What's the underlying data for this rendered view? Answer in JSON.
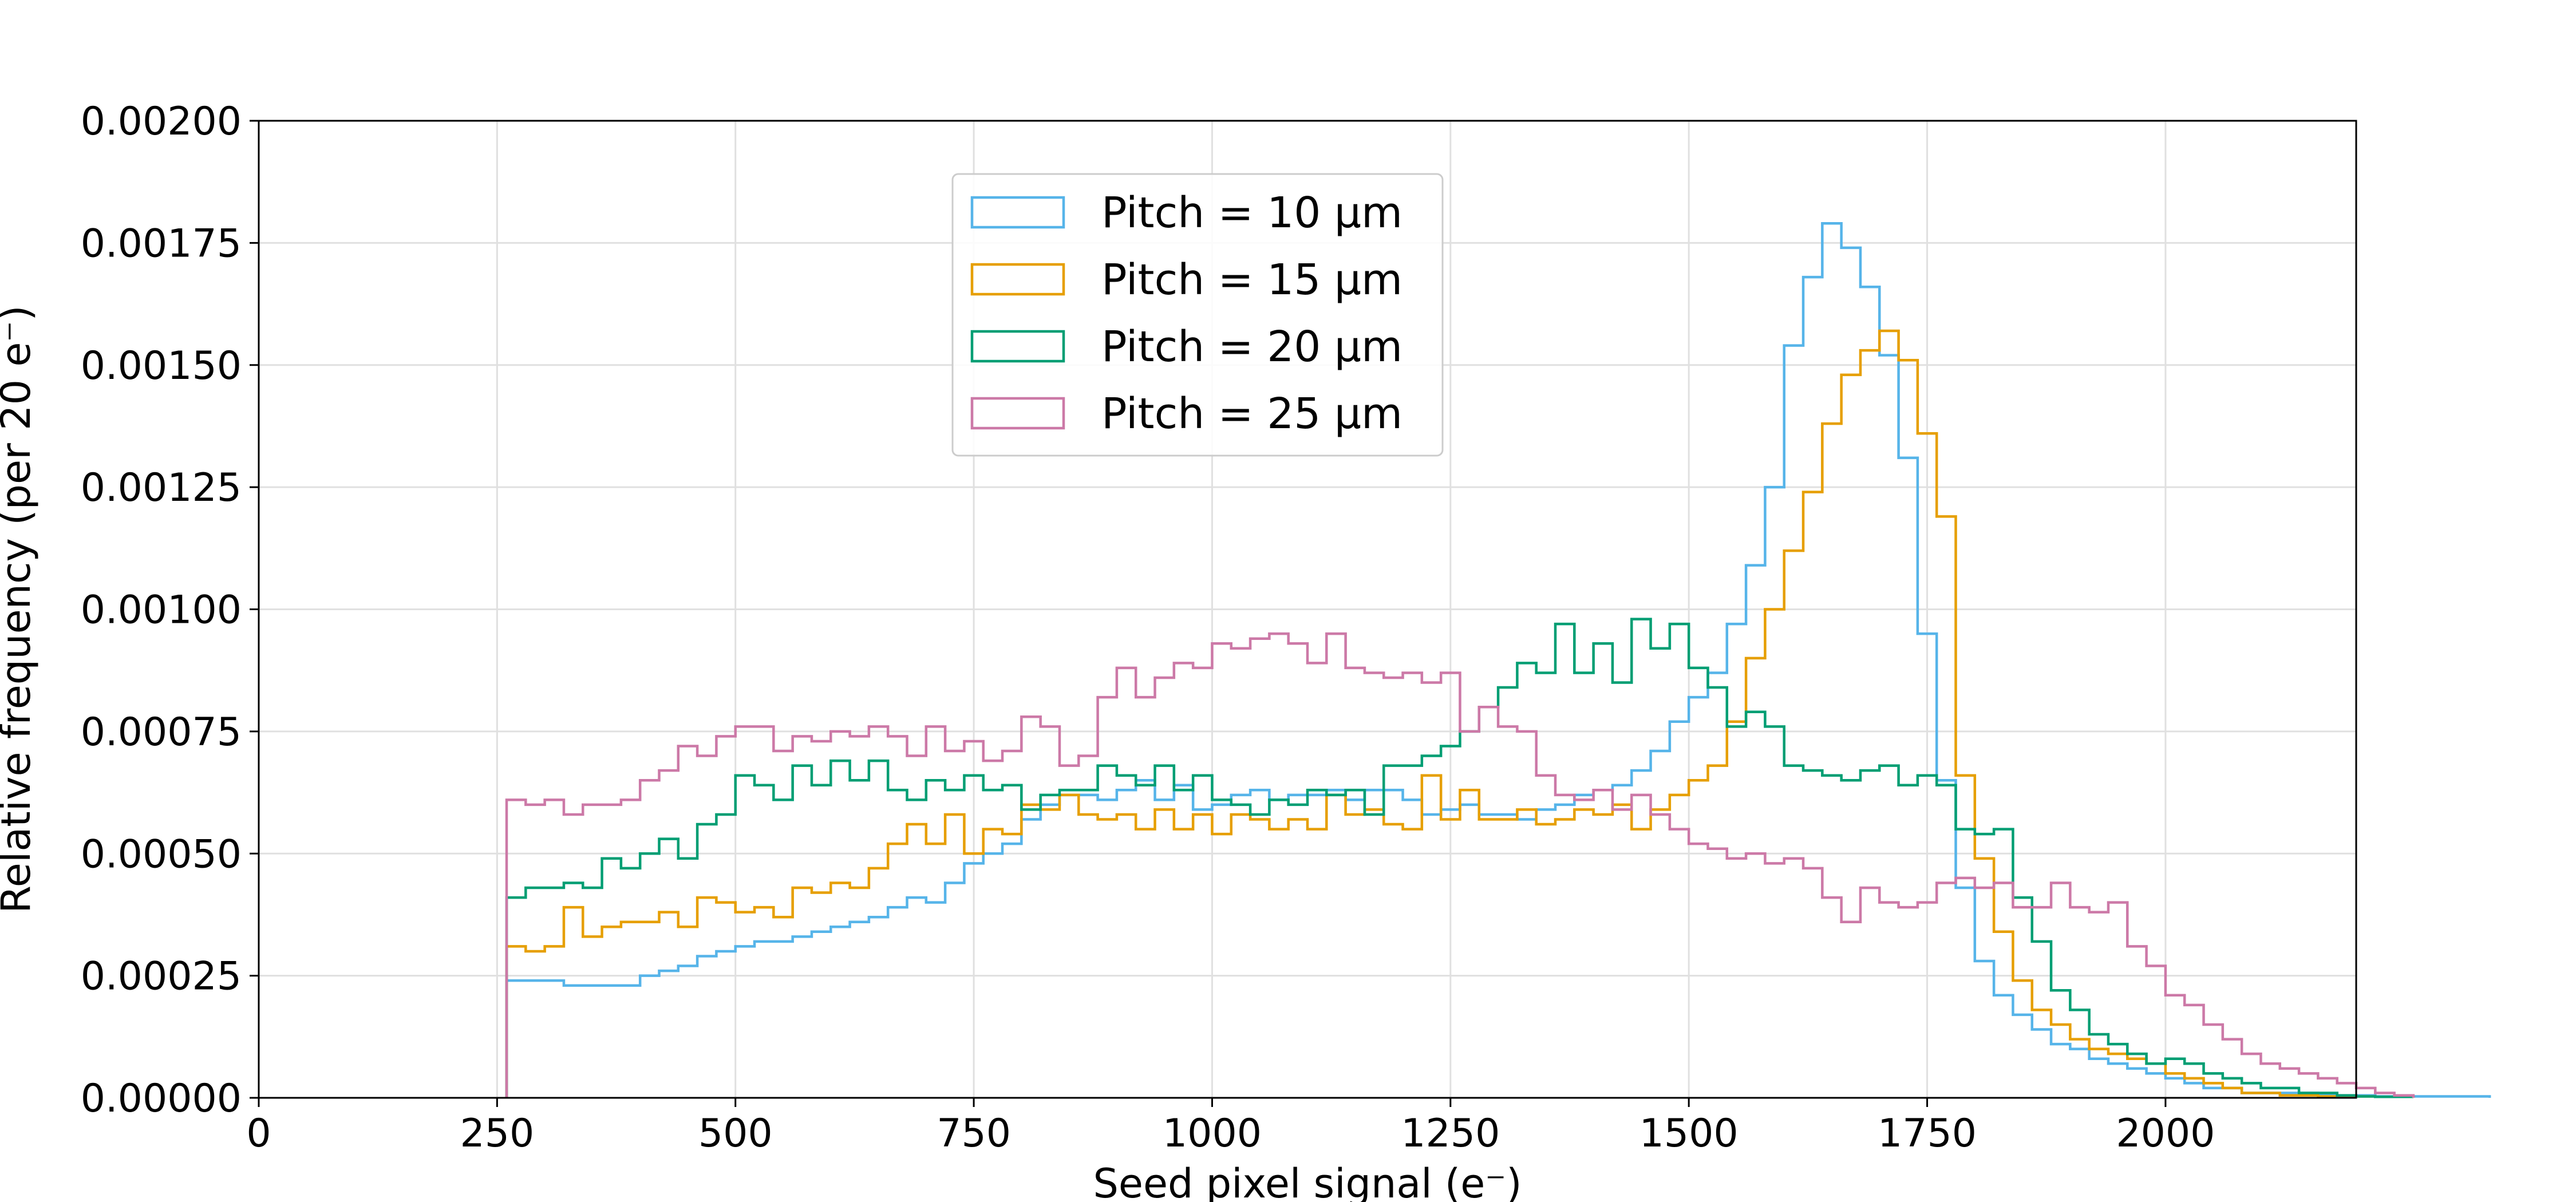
{
  "chart_data": {
    "type": "histogram-step",
    "xlabel": "Seed pixel signal (e⁻)",
    "ylabel": "Relative frequency (per 20 e⁻)",
    "xlim": [
      0,
      2200
    ],
    "ylim": [
      0,
      0.002
    ],
    "xticks": [
      0,
      250,
      500,
      750,
      1000,
      1250,
      1500,
      1750,
      2000
    ],
    "xtick_labels": [
      "0",
      "250",
      "500",
      "750",
      "1000",
      "1250",
      "1500",
      "1750",
      "2000"
    ],
    "yticks": [
      0,
      0.00025,
      0.0005,
      0.00075,
      0.001,
      0.00125,
      0.0015,
      0.00175,
      0.002
    ],
    "ytick_labels": [
      "0.00000",
      "0.00025",
      "0.00050",
      "0.00075",
      "0.00100",
      "0.00125",
      "0.00150",
      "0.00175",
      "0.00200"
    ],
    "grid": true,
    "legend_position": "upper-center",
    "bin_edges": {
      "start": 260,
      "width": 20
    },
    "series": [
      {
        "name": "Pitch = 10 µm",
        "color": "#56b4e9",
        "values": [
          0.00024,
          0.00024,
          0.00024,
          0.00023,
          0.00023,
          0.00023,
          0.00023,
          0.00025,
          0.00026,
          0.00027,
          0.00029,
          0.0003,
          0.00031,
          0.00032,
          0.00032,
          0.00033,
          0.00034,
          0.00035,
          0.00036,
          0.00037,
          0.00039,
          0.00041,
          0.0004,
          0.00044,
          0.00048,
          0.0005,
          0.00052,
          0.00057,
          0.0006,
          0.00062,
          0.00062,
          0.00061,
          0.00063,
          0.00065,
          0.00061,
          0.00064,
          0.00059,
          0.0006,
          0.00062,
          0.00063,
          0.00061,
          0.00062,
          0.00062,
          0.00063,
          0.00061,
          0.00063,
          0.00063,
          0.00061,
          0.00058,
          0.00059,
          0.0006,
          0.00058,
          0.00058,
          0.00057,
          0.00059,
          0.0006,
          0.00062,
          0.00063,
          0.00064,
          0.00067,
          0.00071,
          0.00077,
          0.00082,
          0.00087,
          0.00097,
          0.00109,
          0.00125,
          0.00154,
          0.00168,
          0.00179,
          0.00174,
          0.00166,
          0.00152,
          0.00131,
          0.00095,
          0.00065,
          0.00043,
          0.00028,
          0.00021,
          0.00017,
          0.00014,
          0.00011,
          0.0001,
          8e-05,
          7e-05,
          6e-05,
          5e-05,
          4e-05,
          3e-05,
          2e-05,
          2e-05,
          1e-05,
          1e-05,
          1e-05,
          1e-05,
          5e-06,
          5e-06,
          5e-06,
          3e-06,
          3e-06
        ],
        "tail": [
          3e-06,
          3e-06,
          3e-06,
          3e-06
        ]
      },
      {
        "name": "Pitch = 15 µm",
        "color": "#e69f00",
        "values": [
          0.00031,
          0.0003,
          0.00031,
          0.00039,
          0.00033,
          0.00035,
          0.00036,
          0.00036,
          0.00038,
          0.00035,
          0.00041,
          0.0004,
          0.00038,
          0.00039,
          0.00037,
          0.00043,
          0.00042,
          0.00044,
          0.00043,
          0.00047,
          0.00052,
          0.00056,
          0.00052,
          0.00058,
          0.0005,
          0.00055,
          0.00054,
          0.0006,
          0.00059,
          0.00062,
          0.00058,
          0.00057,
          0.00058,
          0.00055,
          0.00059,
          0.00055,
          0.00058,
          0.00054,
          0.00058,
          0.00057,
          0.00055,
          0.00057,
          0.00055,
          0.00062,
          0.00058,
          0.00059,
          0.00056,
          0.00055,
          0.00066,
          0.00057,
          0.00063,
          0.00057,
          0.00057,
          0.00059,
          0.00056,
          0.00057,
          0.00059,
          0.00058,
          0.0006,
          0.00055,
          0.00059,
          0.00062,
          0.00065,
          0.00068,
          0.00077,
          0.0009,
          0.001,
          0.00112,
          0.00124,
          0.00138,
          0.00148,
          0.00153,
          0.00157,
          0.00151,
          0.00136,
          0.00119,
          0.00066,
          0.00049,
          0.00034,
          0.00024,
          0.00018,
          0.00015,
          0.00012,
          0.0001,
          9e-05,
          8e-05,
          7e-05,
          5e-05,
          4e-05,
          3e-05,
          2e-05,
          1e-05,
          1e-05,
          5e-06,
          5e-06,
          3e-06,
          3e-06,
          3e-06,
          2e-06,
          2e-06
        ]
      },
      {
        "name": "Pitch = 20 µm",
        "color": "#009e73",
        "values": [
          0.00041,
          0.00043,
          0.00043,
          0.00044,
          0.00043,
          0.00049,
          0.00047,
          0.0005,
          0.00053,
          0.00049,
          0.00056,
          0.00058,
          0.00066,
          0.00064,
          0.00061,
          0.00068,
          0.00064,
          0.00069,
          0.00065,
          0.00069,
          0.00063,
          0.00061,
          0.00065,
          0.00063,
          0.00066,
          0.00063,
          0.00064,
          0.00059,
          0.00062,
          0.00063,
          0.00063,
          0.00068,
          0.00066,
          0.00064,
          0.00068,
          0.00063,
          0.00066,
          0.00061,
          0.0006,
          0.00058,
          0.00061,
          0.0006,
          0.00063,
          0.00062,
          0.00063,
          0.00058,
          0.00068,
          0.00068,
          0.0007,
          0.00072,
          0.00075,
          0.0008,
          0.00084,
          0.00089,
          0.00087,
          0.00097,
          0.00087,
          0.00093,
          0.00085,
          0.00098,
          0.00092,
          0.00097,
          0.00088,
          0.00084,
          0.00076,
          0.00079,
          0.00076,
          0.00068,
          0.00067,
          0.00066,
          0.00065,
          0.00067,
          0.00068,
          0.00064,
          0.00066,
          0.00064,
          0.00055,
          0.00054,
          0.00055,
          0.00041,
          0.00032,
          0.00022,
          0.00018,
          0.00013,
          0.00011,
          9e-05,
          7e-05,
          8e-05,
          7e-05,
          5e-05,
          4e-05,
          3e-05,
          2e-05,
          2e-05,
          1e-05,
          1e-05,
          5e-06,
          3e-06,
          2e-06,
          2e-06
        ]
      },
      {
        "name": "Pitch = 25 µm",
        "color": "#cc79a7",
        "values": [
          0.00061,
          0.0006,
          0.00061,
          0.00058,
          0.0006,
          0.0006,
          0.00061,
          0.00065,
          0.00067,
          0.00072,
          0.0007,
          0.00074,
          0.00076,
          0.00076,
          0.00071,
          0.00074,
          0.00073,
          0.00075,
          0.00074,
          0.00076,
          0.00074,
          0.0007,
          0.00076,
          0.00071,
          0.00073,
          0.00069,
          0.00071,
          0.00078,
          0.00076,
          0.00068,
          0.0007,
          0.00082,
          0.00088,
          0.00082,
          0.00086,
          0.00089,
          0.00088,
          0.00093,
          0.00092,
          0.00094,
          0.00095,
          0.00093,
          0.00089,
          0.00095,
          0.00088,
          0.00087,
          0.00086,
          0.00087,
          0.00085,
          0.00087,
          0.00075,
          0.0008,
          0.00076,
          0.00075,
          0.00066,
          0.00062,
          0.00061,
          0.00063,
          0.00059,
          0.00062,
          0.00058,
          0.00055,
          0.00052,
          0.00051,
          0.00049,
          0.0005,
          0.00048,
          0.00049,
          0.00047,
          0.00041,
          0.00036,
          0.00043,
          0.0004,
          0.00039,
          0.0004,
          0.00044,
          0.00045,
          0.00043,
          0.00044,
          0.00039,
          0.00039,
          0.00044,
          0.00039,
          0.00038,
          0.0004,
          0.00031,
          0.00027,
          0.00021,
          0.00019,
          0.00015,
          0.00012,
          9e-05,
          7e-05,
          6e-05,
          5e-05,
          4e-05,
          3e-05,
          2e-05,
          1e-05,
          5e-06
        ]
      }
    ]
  }
}
